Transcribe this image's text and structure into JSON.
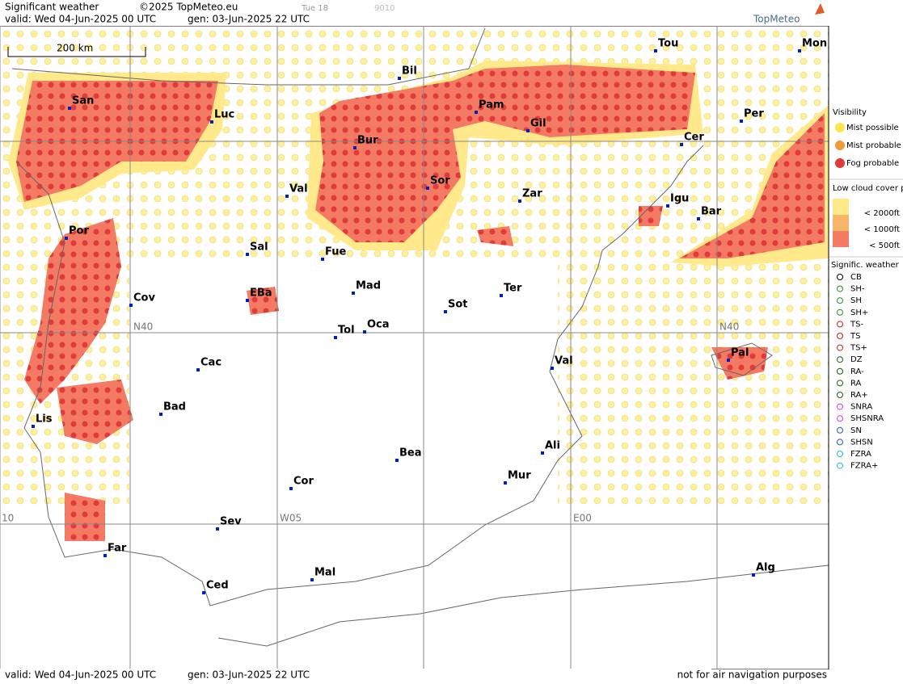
{
  "header": {
    "title": "Significant weather",
    "copyright": "©2025 TopMeteo.eu",
    "valid": "valid:  Wed  04-Jun-2025  00 UTC",
    "gen": "gen: 03-Jun-2025 22 UTC",
    "tag1": "Tue 18",
    "tag2": "9010",
    "logo": "TopMeteo"
  },
  "map": {
    "scale": "200 km",
    "grid_labels": [
      "N40",
      "W05",
      "E00",
      "N40",
      "10"
    ],
    "cities": [
      "San",
      "Luc",
      "Bil",
      "Pam",
      "Tou",
      "Mon",
      "Per",
      "Gil",
      "Cer",
      "Bur",
      "Sor",
      "Val",
      "Zar",
      "Igu",
      "Bar",
      "Por",
      "Sal",
      "Fue",
      "Mad",
      "EBa",
      "Cov",
      "Ter",
      "Sot",
      "Tol",
      "Oca",
      "Cac",
      "Val",
      "Pal",
      "Bad",
      "Lis",
      "Bea",
      "Ali",
      "Mur",
      "Cor",
      "Sev",
      "Far",
      "Mal",
      "Ced",
      "Alg"
    ]
  },
  "legend": {
    "visibility_title": "Visibility",
    "visibility": [
      "Mist possible",
      "Mist probable",
      "Fog probable"
    ],
    "cloud_title": "Low cloud cover probable",
    "cloud": [
      "< 2000ft",
      "< 1000ft",
      "<  500ft"
    ],
    "weather_title": "Signific. weather",
    "weather": [
      "CB",
      "SH-",
      "SH",
      "SH+",
      "TS-",
      "TS",
      "TS+",
      "DZ",
      "RA-",
      "RA",
      "RA+",
      "SNRA",
      "SHSNRA",
      "SN",
      "SHSN",
      "FZRA",
      "FZRA+"
    ]
  },
  "footer": {
    "valid": "valid:  Wed  04-Jun-2025  00 UTC",
    "gen": "gen: 03-Jun-2025 22 UTC",
    "note": "not for air navigation purposes"
  }
}
